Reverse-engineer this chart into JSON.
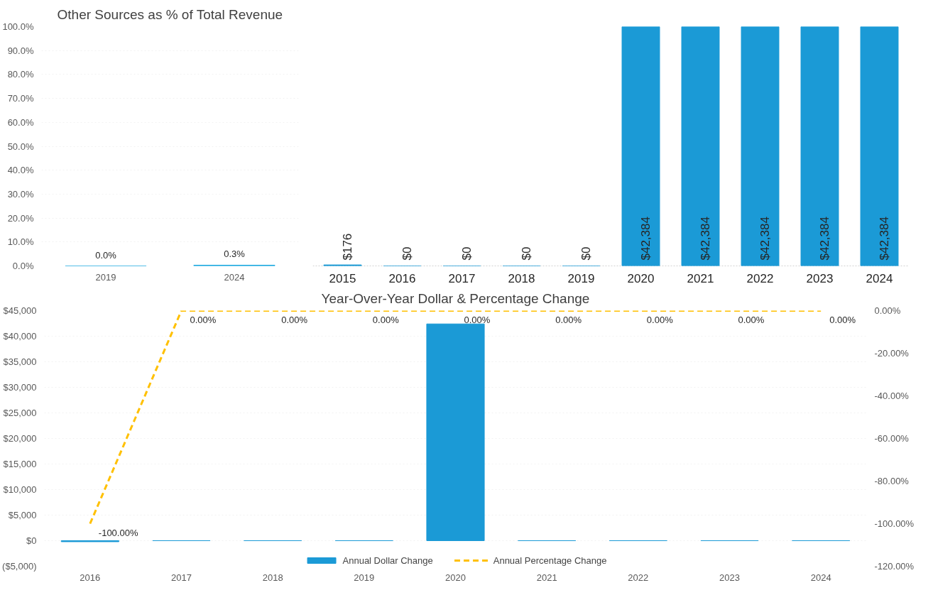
{
  "chart_data": [
    {
      "type": "bar",
      "title": "Other Sources as % of Total Revenue",
      "categories": [
        "2019",
        "2024"
      ],
      "values": [
        0,
        0.3
      ],
      "value_labels": [
        "0.0%",
        "0.3%"
      ],
      "color": "#1ca8e0",
      "ylim": [
        0,
        100
      ],
      "yticks": [
        {
          "value": 0,
          "label": "0.0%"
        },
        {
          "value": 10,
          "label": "10.0%"
        },
        {
          "value": 20,
          "label": "20.0%"
        },
        {
          "value": 30,
          "label": "30.0%"
        },
        {
          "value": 40,
          "label": "40.0%"
        },
        {
          "value": 50,
          "label": "50.0%"
        },
        {
          "value": 60,
          "label": "60.0%"
        },
        {
          "value": 70,
          "label": "70.0%"
        },
        {
          "value": 80,
          "label": "80.0%"
        },
        {
          "value": 90,
          "label": "90.0%"
        },
        {
          "value": 100,
          "label": "100.0%"
        }
      ],
      "grid": "y"
    },
    {
      "type": "bar",
      "categories": [
        "2015",
        "2016",
        "2017",
        "2018",
        "2019",
        "2020",
        "2021",
        "2022",
        "2023",
        "2024"
      ],
      "values": [
        176,
        0,
        0,
        0,
        0,
        42384,
        42384,
        42384,
        42384,
        42384
      ],
      "value_labels": [
        "$176",
        "$0",
        "$0",
        "$0",
        "$0",
        "$42,384",
        "$42,384",
        "$42,384",
        "$42,384",
        "$42,384"
      ],
      "color": "#1b9ad6",
      "tick_labels": "x"
    },
    {
      "type": "bar",
      "title": "Year-Over-Year Dollar & Percentage Change",
      "categories": [
        "2016",
        "2017",
        "2018",
        "2019",
        "2020",
        "2021",
        "2022",
        "2023",
        "2024"
      ],
      "series": [
        {
          "name": "Annual Dollar Change",
          "type": "bar",
          "color": "#1b9ad6",
          "values": [
            -200,
            0,
            0,
            0,
            42400,
            0,
            0,
            0,
            0
          ]
        },
        {
          "name": "Annual Percentage Change",
          "type": "line",
          "axis": "y2",
          "color": "#ffc000",
          "line_style": "dashed",
          "values": [
            -100,
            0,
            0,
            0,
            0,
            0,
            0,
            0,
            0
          ],
          "value_labels": [
            "-100.00%",
            "0.00%",
            "0.00%",
            "0.00%",
            "0.00%",
            "0.00%",
            "0.00%",
            "0.00%",
            "0.00%"
          ]
        }
      ],
      "ylim": [
        -5000,
        45000
      ],
      "yticks": [
        {
          "value": -5000,
          "label": "($5,000)"
        },
        {
          "value": 0,
          "label": "$0"
        },
        {
          "value": 5000,
          "label": "$5,000"
        },
        {
          "value": 10000,
          "label": "$10,000"
        },
        {
          "value": 15000,
          "label": "$15,000"
        },
        {
          "value": 20000,
          "label": "$20,000"
        },
        {
          "value": 25000,
          "label": "$25,000"
        },
        {
          "value": 30000,
          "label": "$30,000"
        },
        {
          "value": 35000,
          "label": "$35,000"
        },
        {
          "value": 40000,
          "label": "$40,000"
        },
        {
          "value": 45000,
          "label": "$45,000"
        }
      ],
      "y2lim": [
        -120,
        0
      ],
      "y2ticks": [
        {
          "value": -120,
          "label": "-120.00%"
        },
        {
          "value": -100,
          "label": "-100.00%"
        },
        {
          "value": -80,
          "label": "-80.00%"
        },
        {
          "value": -60,
          "label": "-60.00%"
        },
        {
          "value": -40,
          "label": "-40.00%"
        },
        {
          "value": -20,
          "label": "-20.00%"
        },
        {
          "value": 0,
          "label": "0.00%"
        }
      ],
      "legend": "bottom",
      "grid": "y"
    }
  ]
}
